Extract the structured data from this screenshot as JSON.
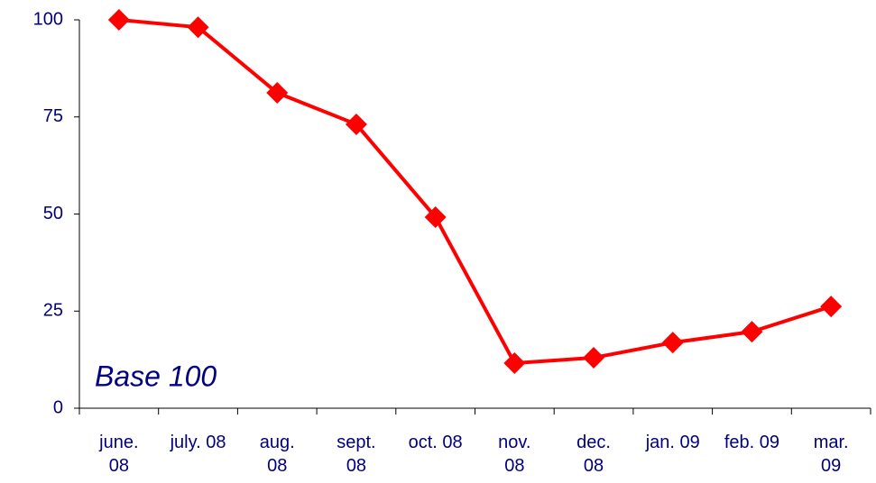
{
  "chart_data": {
    "type": "line",
    "annotation": "Base 100",
    "categories": [
      "june. 08",
      "july. 08",
      "aug. 08",
      "sept. 08",
      "oct. 08",
      "nov. 08",
      "dec. 08",
      "jan. 09",
      "feb. 09",
      "mar. 09"
    ],
    "series": [
      {
        "name": "Base 100",
        "color": "#ff0000",
        "values": [
          100,
          98.1,
          81.2,
          73.1,
          49.2,
          11.6,
          13,
          16.9,
          19.7,
          26.2
        ]
      }
    ],
    "ylim": [
      0,
      100
    ],
    "yticks": [
      0,
      25,
      50,
      75,
      100
    ],
    "grid": false
  }
}
